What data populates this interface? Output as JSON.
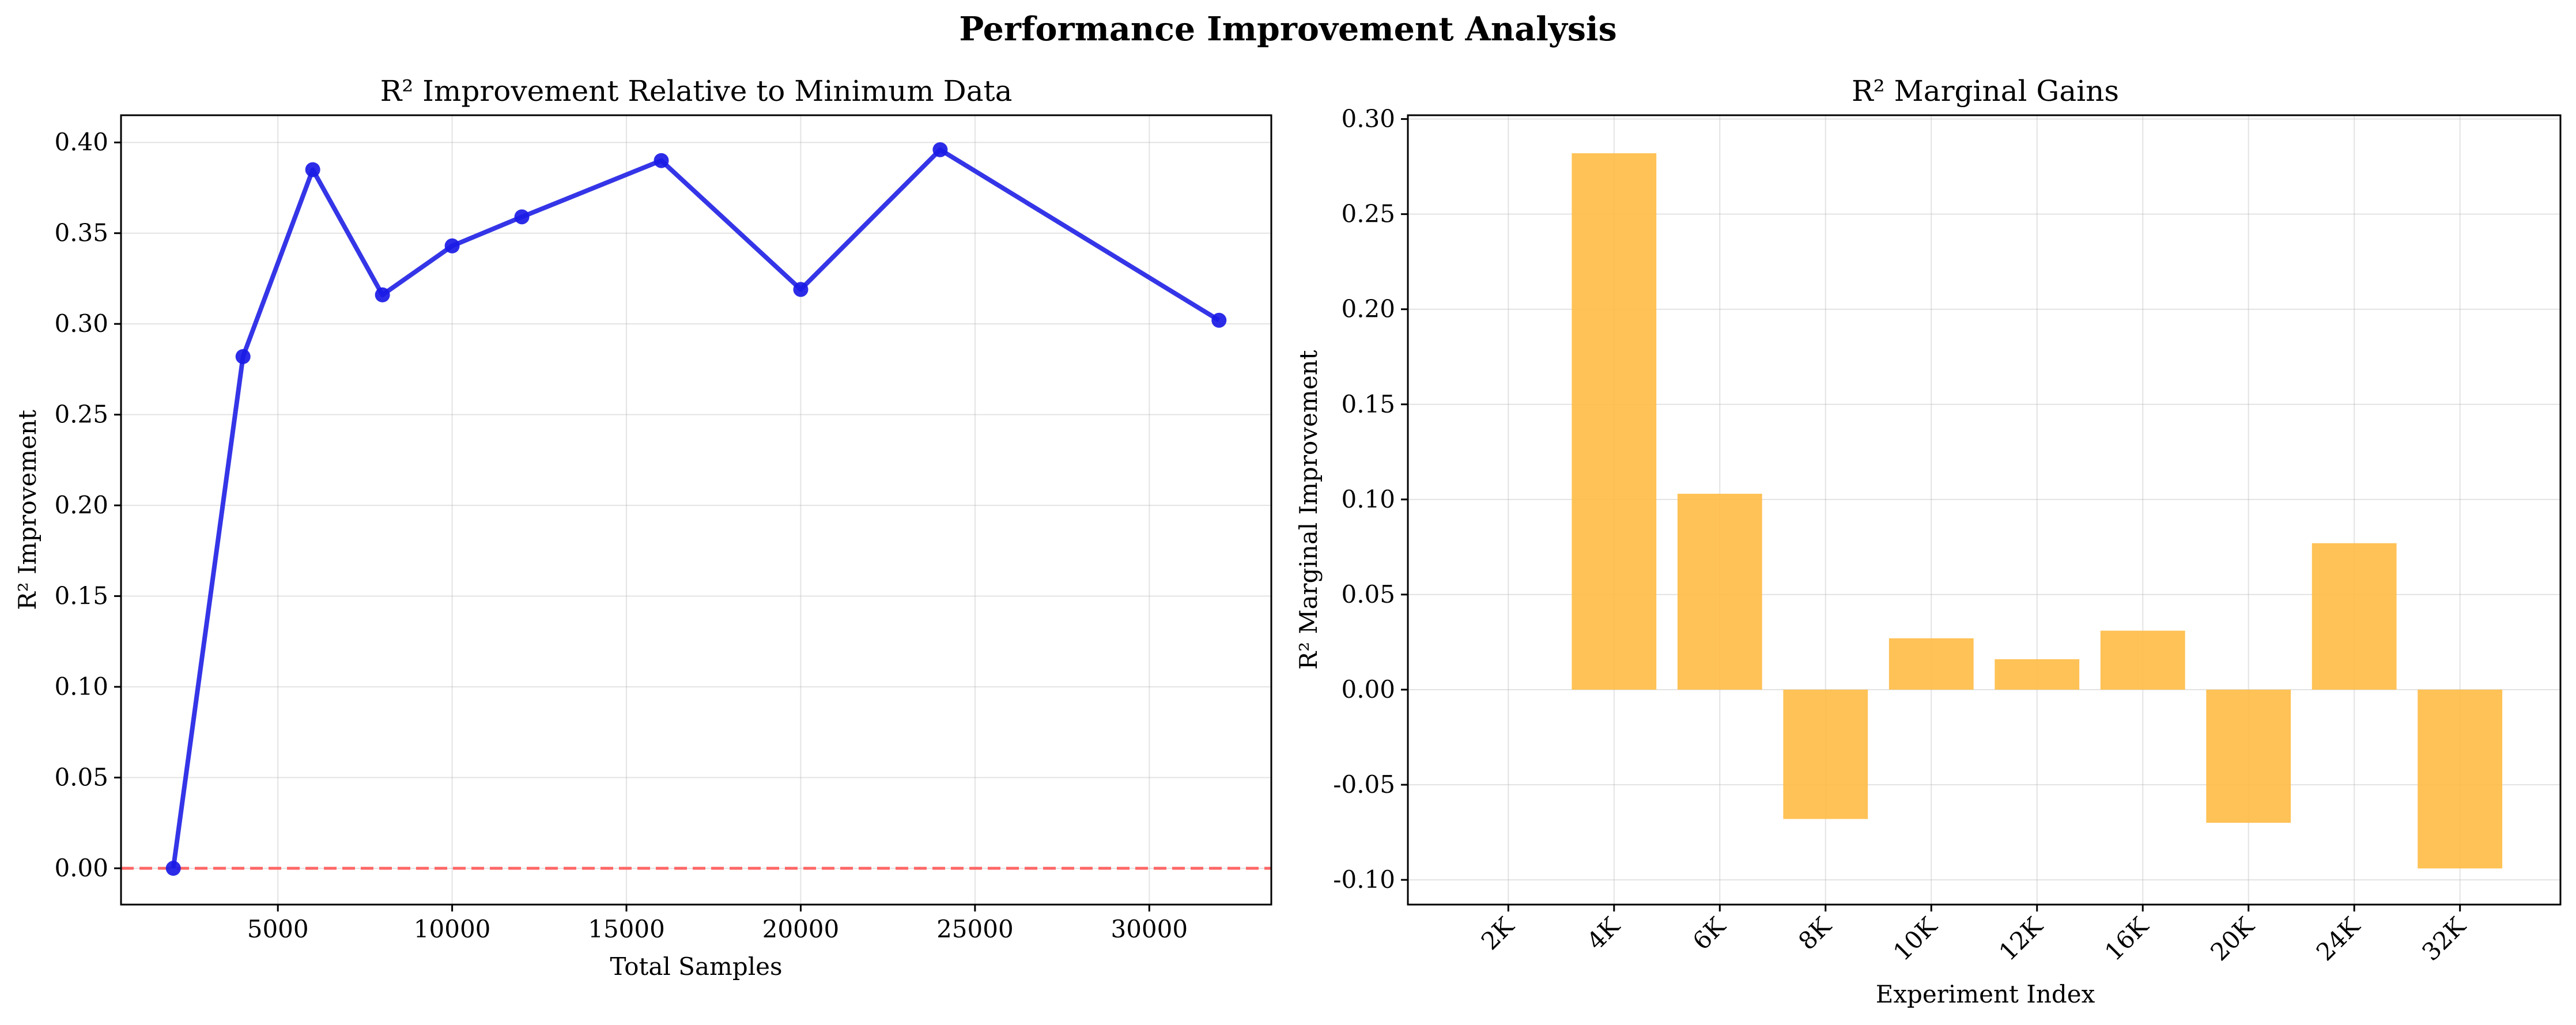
{
  "title": "Performance Improvement Analysis",
  "colors": {
    "line": "#2424e6",
    "marker": "#1a1ae6",
    "baseline": "#ff6666",
    "bar": "#ffbb44"
  },
  "chart_data": [
    {
      "type": "line",
      "title": "R² Improvement Relative to Minimum Data",
      "xlabel": "Total Samples",
      "ylabel": "R² Improvement",
      "x": [
        2000,
        4000,
        6000,
        8000,
        10000,
        12000,
        16000,
        20000,
        24000,
        32000
      ],
      "y": [
        0.0,
        0.282,
        0.385,
        0.316,
        0.343,
        0.359,
        0.39,
        0.319,
        0.396,
        0.302
      ],
      "xlim": [
        500,
        33500
      ],
      "ylim": [
        -0.02,
        0.415
      ],
      "xticks": [
        5000,
        10000,
        15000,
        20000,
        25000,
        30000
      ],
      "xtick_labels": [
        "5000",
        "10000",
        "15000",
        "20000",
        "25000",
        "30000"
      ],
      "yticks": [
        0.0,
        0.05,
        0.1,
        0.15,
        0.2,
        0.25,
        0.3,
        0.35,
        0.4
      ],
      "ytick_labels": [
        "0.00",
        "0.05",
        "0.10",
        "0.15",
        "0.20",
        "0.25",
        "0.30",
        "0.35",
        "0.40"
      ],
      "reference_line": {
        "y": 0.0,
        "style": "dashed"
      },
      "grid": true
    },
    {
      "type": "bar",
      "title": "R² Marginal Gains",
      "xlabel": "Experiment Index",
      "ylabel": "R² Marginal Improvement",
      "categories": [
        "2K",
        "4K",
        "6K",
        "8K",
        "10K",
        "12K",
        "16K",
        "20K",
        "24K",
        "32K"
      ],
      "values": [
        0.0,
        0.282,
        0.103,
        -0.068,
        0.027,
        0.016,
        0.031,
        -0.07,
        0.077,
        -0.094
      ],
      "ylim": [
        -0.113,
        0.302
      ],
      "yticks": [
        -0.1,
        -0.05,
        0.0,
        0.05,
        0.1,
        0.15,
        0.2,
        0.25,
        0.3
      ],
      "ytick_labels": [
        "-0.10",
        "-0.05",
        "0.00",
        "0.05",
        "0.10",
        "0.15",
        "0.20",
        "0.25",
        "0.30"
      ],
      "grid": true
    }
  ]
}
